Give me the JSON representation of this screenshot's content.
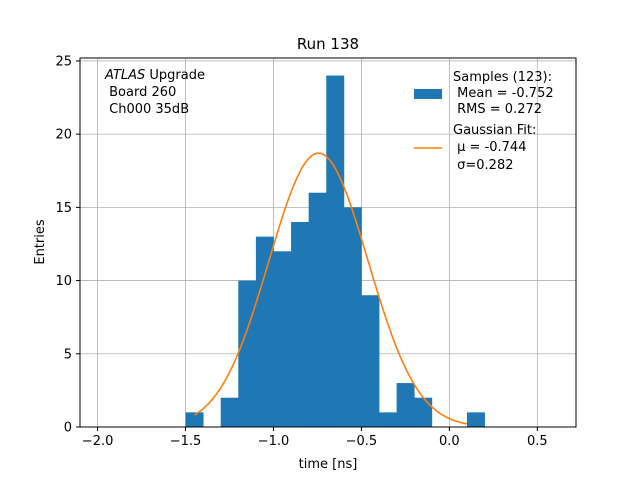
{
  "chart_data": {
    "type": "bar",
    "title": "Run 138",
    "xlabel": "time [ns]",
    "ylabel": "Entries",
    "xlim": [
      -2.1,
      0.72
    ],
    "ylim": [
      0,
      25.2
    ],
    "xticks": [
      -2.0,
      -1.5,
      -1.0,
      -0.5,
      0.0,
      0.5
    ],
    "xtick_labels": [
      "−2.0",
      "−1.5",
      "−1.0",
      "−0.5",
      "0.0",
      "0.5"
    ],
    "yticks": [
      0,
      5,
      10,
      15,
      20,
      25
    ],
    "ytick_labels": [
      "0",
      "5",
      "10",
      "15",
      "20",
      "25"
    ],
    "grid": true,
    "bar_color": "#1f77b4",
    "fit_color": "#ff7f0e",
    "bins": [
      {
        "x0": -1.5,
        "x1": -1.4,
        "count": 1
      },
      {
        "x0": -1.4,
        "x1": -1.3,
        "count": 0
      },
      {
        "x0": -1.3,
        "x1": -1.2,
        "count": 2
      },
      {
        "x0": -1.2,
        "x1": -1.1,
        "count": 10
      },
      {
        "x0": -1.1,
        "x1": -1.0,
        "count": 13
      },
      {
        "x0": -1.0,
        "x1": -0.9,
        "count": 12
      },
      {
        "x0": -0.9,
        "x1": -0.8,
        "count": 14
      },
      {
        "x0": -0.8,
        "x1": -0.7,
        "count": 16
      },
      {
        "x0": -0.7,
        "x1": -0.6,
        "count": 24
      },
      {
        "x0": -0.6,
        "x1": -0.5,
        "count": 15
      },
      {
        "x0": -0.5,
        "x1": -0.4,
        "count": 9
      },
      {
        "x0": -0.4,
        "x1": -0.3,
        "count": 1
      },
      {
        "x0": -0.3,
        "x1": -0.2,
        "count": 3
      },
      {
        "x0": -0.2,
        "x1": -0.1,
        "count": 2
      },
      {
        "x0": -0.1,
        "x1": 0.0,
        "count": 0
      },
      {
        "x0": 0.0,
        "x1": 0.1,
        "count": 0
      },
      {
        "x0": 0.1,
        "x1": 0.2,
        "count": 1
      }
    ],
    "fit": {
      "mu": -0.744,
      "sigma": 0.282,
      "amplitude": 18.7,
      "x_range": [
        -1.45,
        0.1
      ]
    },
    "annotation": {
      "atlas": "ATLAS",
      "line1_rest": " Upgrade",
      "line2": " Board 260",
      "line3": " Ch000 35dB"
    },
    "legend": {
      "position": "top-right",
      "samples": {
        "line1": "Samples (123):",
        "line2": " Mean = -0.752",
        "line3": " RMS = 0.272"
      },
      "fit": {
        "line1": "Gaussian Fit:",
        "line2": " μ = -0.744",
        "line3": " σ=0.282"
      }
    }
  }
}
